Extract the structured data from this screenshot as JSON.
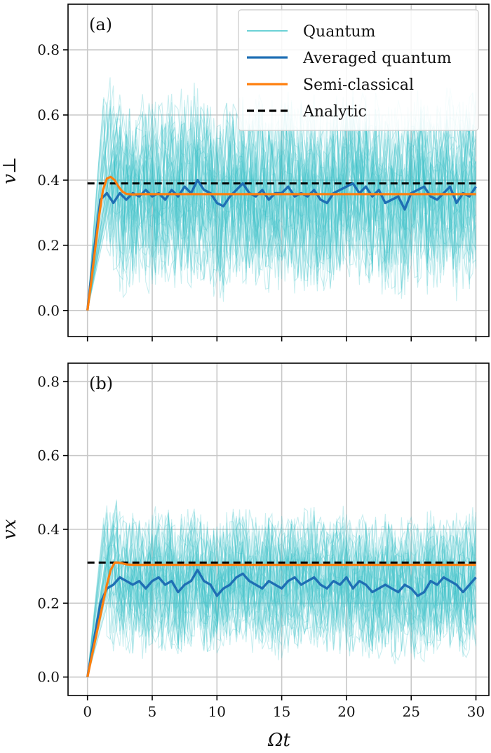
{
  "legend": [
    {
      "label": "Quantum",
      "color": "#3cc3c8"
    },
    {
      "label": "Averaged quantum",
      "color": "#1f6fb4"
    },
    {
      "label": "Semi-classical",
      "color": "#ff7f0e"
    },
    {
      "label": "Analytic",
      "color": "#000000"
    }
  ],
  "xlabel": "Ωt",
  "x_ticks": [
    0,
    5,
    10,
    15,
    20,
    25,
    30
  ],
  "chart_data": [
    {
      "type": "line",
      "panel": "(a)",
      "ylabel": "v⊥",
      "xlim": [
        -1.5,
        31
      ],
      "ylim": [
        -0.08,
        0.94
      ],
      "y_ticks": [
        0.0,
        0.2,
        0.4,
        0.6,
        0.8
      ],
      "grid": true,
      "legend_position": "top-right",
      "series": [
        {
          "name": "Averaged quantum",
          "x": [
            0,
            0.5,
            1,
            1.5,
            2,
            2.5,
            3,
            3.5,
            4,
            4.5,
            5,
            5.5,
            6,
            6.5,
            7,
            7.5,
            8,
            8.5,
            9,
            9.5,
            10,
            10.5,
            11,
            11.5,
            12,
            12.5,
            13,
            13.5,
            14,
            14.5,
            15,
            15.5,
            16,
            16.5,
            17,
            17.5,
            18,
            18.5,
            19,
            19.5,
            20,
            20.5,
            21,
            21.5,
            22,
            22.5,
            23,
            23.5,
            24,
            24.5,
            25,
            25.5,
            26,
            26.5,
            27,
            27.5,
            28,
            28.5,
            29,
            29.5,
            30
          ],
          "y": [
            0,
            0.18,
            0.34,
            0.36,
            0.33,
            0.36,
            0.34,
            0.36,
            0.35,
            0.37,
            0.35,
            0.36,
            0.34,
            0.37,
            0.35,
            0.38,
            0.36,
            0.4,
            0.37,
            0.36,
            0.33,
            0.32,
            0.35,
            0.37,
            0.39,
            0.36,
            0.35,
            0.37,
            0.34,
            0.36,
            0.36,
            0.38,
            0.35,
            0.36,
            0.35,
            0.37,
            0.34,
            0.33,
            0.36,
            0.37,
            0.38,
            0.39,
            0.36,
            0.38,
            0.35,
            0.37,
            0.33,
            0.34,
            0.35,
            0.31,
            0.36,
            0.37,
            0.38,
            0.35,
            0.34,
            0.36,
            0.38,
            0.33,
            0.36,
            0.35,
            0.38
          ]
        },
        {
          "name": "Semi-classical",
          "x": [
            0,
            0.3,
            0.6,
            0.9,
            1.2,
            1.5,
            1.8,
            2.1,
            2.4,
            2.7,
            3.0,
            3.5,
            4,
            5,
            30
          ],
          "y": [
            0,
            0.09,
            0.19,
            0.29,
            0.37,
            0.405,
            0.41,
            0.4,
            0.38,
            0.365,
            0.358,
            0.356,
            0.357,
            0.357,
            0.357
          ]
        },
        {
          "name": "Analytic",
          "x": [
            0,
            30
          ],
          "y": [
            0.39,
            0.39
          ]
        }
      ]
    },
    {
      "type": "line",
      "panel": "(b)",
      "ylabel": "vx",
      "xlim": [
        -1.5,
        31
      ],
      "ylim": [
        -0.05,
        0.85
      ],
      "y_ticks": [
        0.0,
        0.2,
        0.4,
        0.6,
        0.8
      ],
      "grid": true,
      "series": [
        {
          "name": "Averaged quantum",
          "x": [
            0,
            0.5,
            1,
            1.5,
            2,
            2.5,
            3,
            3.5,
            4,
            4.5,
            5,
            5.5,
            6,
            6.5,
            7,
            7.5,
            8,
            8.5,
            9,
            9.5,
            10,
            10.5,
            11,
            11.5,
            12,
            12.5,
            13,
            13.5,
            14,
            14.5,
            15,
            15.5,
            16,
            16.5,
            17,
            17.5,
            18,
            18.5,
            19,
            19.5,
            20,
            20.5,
            21,
            21.5,
            22,
            22.5,
            23,
            23.5,
            24,
            24.5,
            25,
            25.5,
            26,
            26.5,
            27,
            27.5,
            28,
            28.5,
            29,
            29.5,
            30
          ],
          "y": [
            0,
            0.1,
            0.2,
            0.24,
            0.25,
            0.27,
            0.26,
            0.25,
            0.26,
            0.24,
            0.26,
            0.27,
            0.25,
            0.26,
            0.23,
            0.25,
            0.26,
            0.29,
            0.26,
            0.25,
            0.22,
            0.24,
            0.25,
            0.27,
            0.28,
            0.26,
            0.25,
            0.24,
            0.26,
            0.25,
            0.24,
            0.26,
            0.27,
            0.25,
            0.26,
            0.27,
            0.25,
            0.24,
            0.26,
            0.25,
            0.27,
            0.24,
            0.26,
            0.25,
            0.23,
            0.24,
            0.25,
            0.24,
            0.23,
            0.25,
            0.24,
            0.22,
            0.23,
            0.26,
            0.25,
            0.27,
            0.26,
            0.25,
            0.23,
            0.25,
            0.27
          ]
        },
        {
          "name": "Semi-classical",
          "x": [
            0,
            0.3,
            0.6,
            0.9,
            1.2,
            1.5,
            1.8,
            2.1,
            2.4,
            2.7,
            3.0,
            3.5,
            4,
            5,
            30
          ],
          "y": [
            0,
            0.05,
            0.1,
            0.15,
            0.2,
            0.25,
            0.29,
            0.31,
            0.31,
            0.308,
            0.305,
            0.304,
            0.304,
            0.304,
            0.304
          ]
        },
        {
          "name": "Analytic",
          "x": [
            0,
            30
          ],
          "y": [
            0.31,
            0.31
          ]
        }
      ]
    }
  ]
}
